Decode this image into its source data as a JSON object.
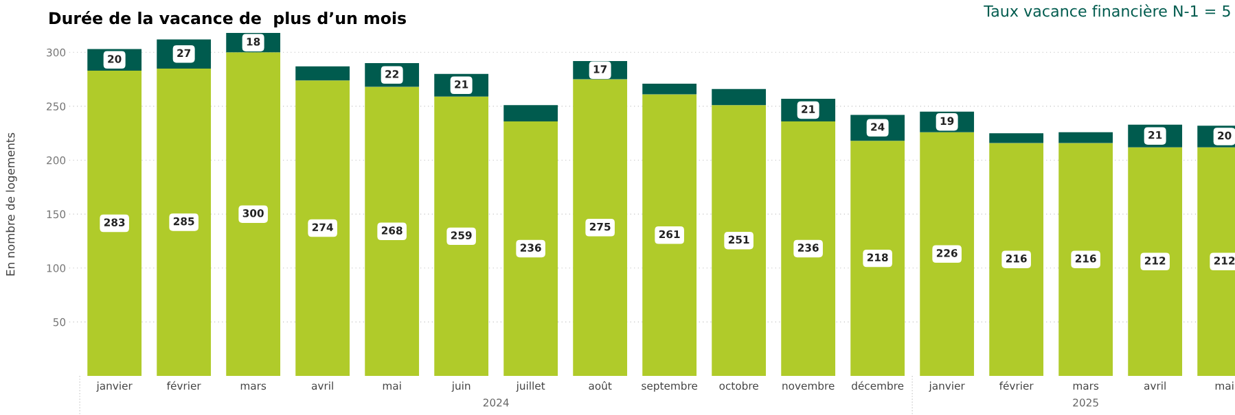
{
  "chart_data": {
    "type": "bar",
    "title": "Durée de la vacance de  plus d’un mois",
    "ylabel": "En nombre de logements",
    "categories": [
      "janvier",
      "février",
      "mars",
      "avril",
      "mai",
      "juin",
      "juillet",
      "août",
      "septembre",
      "octobre",
      "novembre",
      "décembre",
      "janvier",
      "février",
      "mars",
      "avril",
      "mai"
    ],
    "stacked": true,
    "series": [
      {
        "color": "#b0cb2a",
        "values": [
          283,
          285,
          300,
          274,
          268,
          259,
          236,
          275,
          261,
          251,
          236,
          218,
          226,
          216,
          216,
          212,
          212
        ],
        "value_labels": [
          "283",
          "285",
          "300",
          "274",
          "268",
          "259",
          "236",
          "275",
          "261",
          "251",
          "236",
          "218",
          "226",
          "216",
          "216",
          "212",
          "212"
        ]
      },
      {
        "color": "#005b4e",
        "values": [
          20,
          27,
          18,
          13,
          22,
          21,
          15,
          17,
          10,
          15,
          21,
          24,
          19,
          9,
          10,
          21,
          20
        ],
        "value_labels": [
          "20",
          "27",
          "18",
          null,
          "22",
          "21",
          null,
          "17",
          null,
          null,
          "21",
          "24",
          "19",
          null,
          null,
          "21",
          "20"
        ]
      }
    ],
    "ylim": [
      0,
      318
    ],
    "yticks": [
      50,
      100,
      150,
      200,
      250,
      300
    ],
    "grid": "y",
    "annotations": [
      "2024",
      "2025",
      "Taux vacance financière N-1 = 5"
    ]
  }
}
